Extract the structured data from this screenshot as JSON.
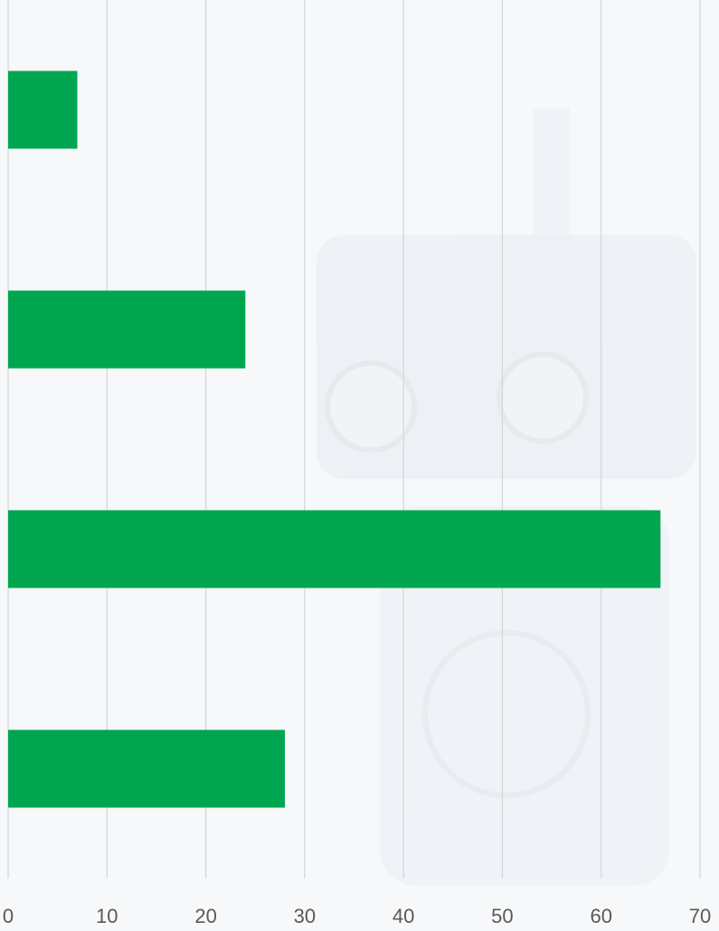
{
  "chart_data": {
    "type": "barh",
    "categories": [
      null,
      null,
      null,
      null
    ],
    "values": [
      7,
      24,
      66,
      28
    ],
    "color": "#00a64f",
    "xlim": [
      0,
      70
    ],
    "xticks": [
      0,
      10,
      20,
      30,
      40,
      50,
      60,
      70
    ],
    "grid": true
  }
}
